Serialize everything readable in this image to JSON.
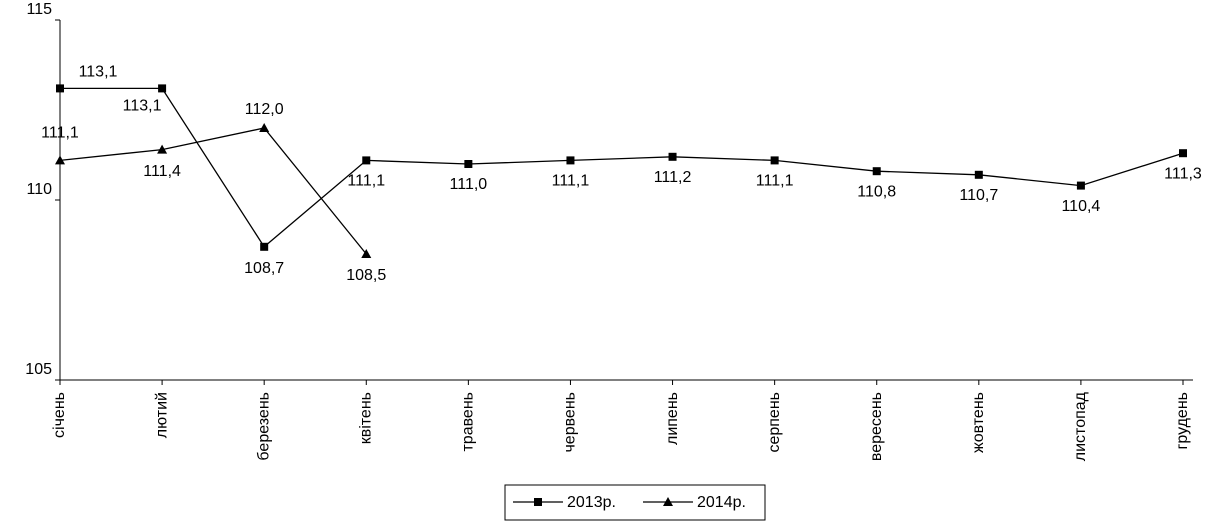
{
  "chart_data": {
    "type": "line",
    "categories": [
      "січень",
      "лютий",
      "березень",
      "квітень",
      "травень",
      "червень",
      "липень",
      "серпень",
      "вересень",
      "жовтень",
      "листопад",
      "грудень"
    ],
    "series": [
      {
        "name": "2013р.",
        "color": "#000000",
        "marker": "square",
        "values": [
          113.1,
          113.1,
          108.7,
          111.1,
          111.0,
          111.1,
          111.2,
          111.1,
          110.8,
          110.7,
          110.4,
          111.3
        ],
        "value_labels": [
          "113,1",
          "113,1",
          "108,7",
          "111,1",
          "111,0",
          "111,1",
          "111,2",
          "111,1",
          "110,8",
          "110,7",
          "110,4",
          "111,3"
        ]
      },
      {
        "name": "2014р.",
        "color": "#000000",
        "marker": "triangle",
        "values": [
          111.1,
          111.4,
          112.0,
          108.5,
          null,
          null,
          null,
          null,
          null,
          null,
          null,
          null
        ],
        "value_labels": [
          "111,1",
          "111,4",
          "112,0",
          "108,5",
          null,
          null,
          null,
          null,
          null,
          null,
          null,
          null
        ]
      }
    ],
    "ylim": [
      105,
      115
    ],
    "yticks": [
      105,
      110,
      115
    ],
    "grid": false,
    "legend": "bottom"
  }
}
